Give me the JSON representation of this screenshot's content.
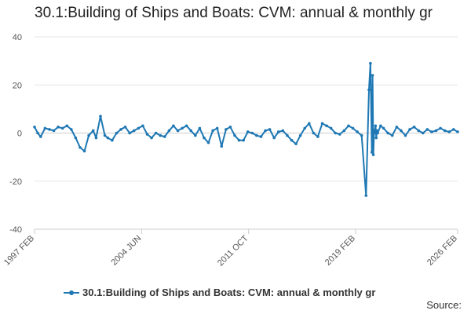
{
  "chart_data": {
    "type": "line",
    "title": "30.1:Building of Ships and Boats: CVM: annual & monthly gr",
    "xlabel": "",
    "ylabel": "",
    "ylim": [
      -40,
      40
    ],
    "yticks": [
      40,
      20,
      0,
      -20,
      -40
    ],
    "x_range": [
      1997.08,
      2026.08
    ],
    "xticks": [
      {
        "label": "1997 FEB",
        "x": 1997.08
      },
      {
        "label": "2004 JUN",
        "x": 2004.42
      },
      {
        "label": "2011 OCT",
        "x": 2011.75
      },
      {
        "label": "2019 FEB",
        "x": 2019.08
      },
      {
        "label": "2026 FEB",
        "x": 2026.08
      }
    ],
    "grid": true,
    "legend_position": "bottom",
    "series": [
      {
        "name": "30.1:Building of Ships and Boats: CVM: annual & monthly gr",
        "color": "#1f78b4",
        "x": [
          1997.08,
          1997.3,
          1997.5,
          1997.8,
          1998.1,
          1998.4,
          1998.7,
          1999.0,
          1999.3,
          1999.6,
          1999.9,
          2000.2,
          2000.5,
          2000.8,
          2001.1,
          2001.3,
          2001.6,
          2001.9,
          2002.1,
          2002.4,
          2002.7,
          2003.0,
          2003.3,
          2003.6,
          2003.9,
          2004.2,
          2004.5,
          2004.8,
          2005.1,
          2005.4,
          2005.7,
          2006.0,
          2006.3,
          2006.6,
          2006.9,
          2007.2,
          2007.5,
          2007.8,
          2008.1,
          2008.4,
          2008.7,
          2009.0,
          2009.3,
          2009.6,
          2009.9,
          2010.2,
          2010.5,
          2010.8,
          2011.1,
          2011.4,
          2011.7,
          2012.0,
          2012.3,
          2012.6,
          2012.9,
          2013.2,
          2013.5,
          2013.8,
          2014.1,
          2014.4,
          2014.7,
          2015.0,
          2015.3,
          2015.6,
          2015.9,
          2016.2,
          2016.5,
          2016.8,
          2017.1,
          2017.4,
          2017.7,
          2018.0,
          2018.3,
          2018.6,
          2018.9,
          2019.2,
          2019.5,
          2019.8,
          2020.0,
          2020.1,
          2020.2,
          2020.25,
          2020.3,
          2020.35,
          2020.45,
          2020.5,
          2020.55,
          2020.6,
          2020.8,
          2021.0,
          2021.3,
          2021.6,
          2021.9,
          2022.2,
          2022.5,
          2022.8,
          2023.1,
          2023.4,
          2023.7,
          2024.0,
          2024.3,
          2024.6,
          2024.9,
          2025.2,
          2025.5,
          2025.8,
          2026.08
        ],
        "values": [
          2.5,
          0,
          -1.5,
          2,
          1.5,
          1,
          2.5,
          2,
          3,
          1.5,
          -2,
          -6,
          -7.5,
          -1,
          1,
          -2,
          7,
          -1,
          -2,
          -3,
          0,
          1.5,
          2.5,
          0,
          1,
          2,
          3,
          -0.5,
          -2,
          0,
          -1,
          -1.5,
          1,
          3,
          1,
          2,
          3,
          1,
          -1,
          2,
          -2,
          -4,
          1,
          2,
          -5.5,
          1.5,
          2.5,
          -1,
          -3,
          -3,
          0.5,
          0,
          -1,
          -1.5,
          1,
          1.5,
          -2,
          0.5,
          1,
          -1,
          -3,
          -4.5,
          -1,
          2,
          4,
          0,
          -1.5,
          4,
          3,
          2,
          0,
          -0.5,
          1,
          3,
          2,
          0.5,
          -1,
          -26,
          18,
          29,
          -8,
          24,
          -9,
          0,
          3,
          -2,
          1,
          0,
          3,
          2,
          0,
          -1,
          2.5,
          1,
          -1,
          1.5,
          2.5,
          1,
          0,
          1.5,
          0.5,
          1,
          2,
          1,
          0.5,
          1.5,
          0.5
        ]
      }
    ]
  },
  "legend": {
    "label": "30.1:Building of Ships and Boats: CVM: annual & monthly gr"
  },
  "source_label": "Source:"
}
